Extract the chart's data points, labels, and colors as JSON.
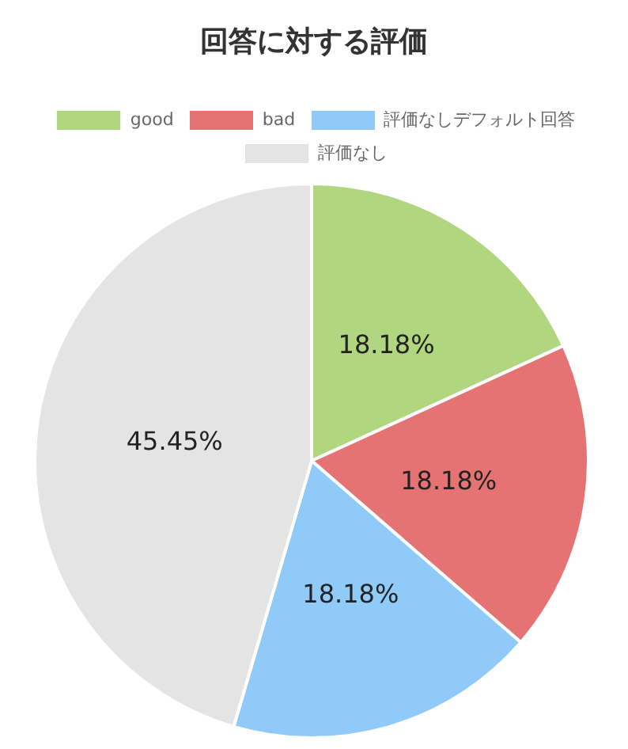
{
  "chart_data": {
    "type": "pie",
    "title": "回答に対する評価",
    "categories": [
      "good",
      "bad",
      "評価なしデフォルト回答",
      "評価なし"
    ],
    "values": [
      18.18,
      18.18,
      18.18,
      45.45
    ],
    "colors": [
      "#b0d680",
      "#e57373",
      "#90caf9",
      "#e4e4e4"
    ],
    "value_labels": [
      "18.18%",
      "18.18%",
      "18.18%",
      "45.45%"
    ],
    "legend": "top"
  }
}
